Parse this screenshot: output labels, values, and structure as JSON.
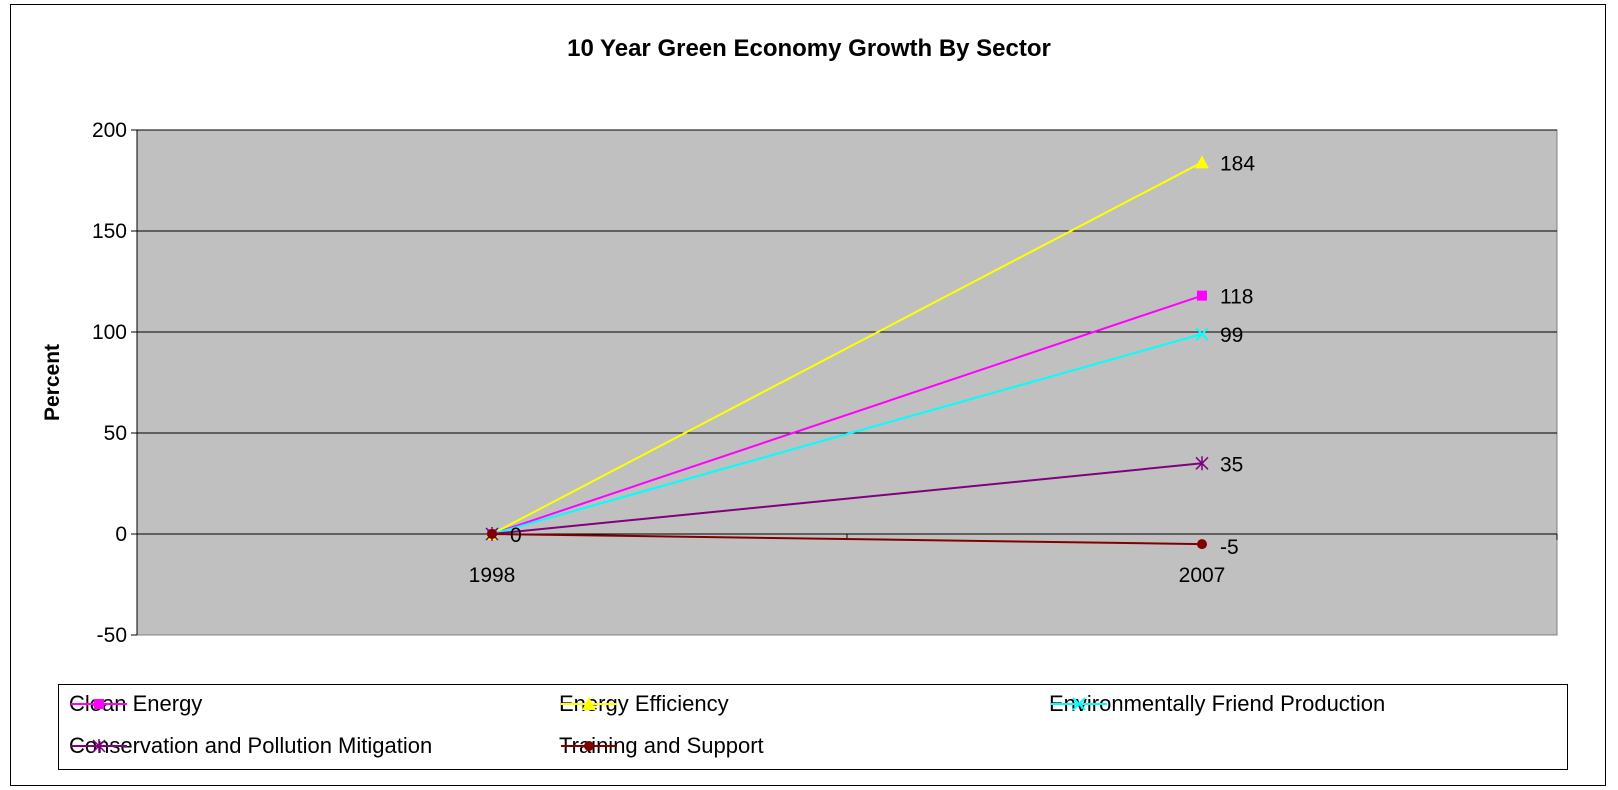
{
  "chart_data": {
    "type": "line",
    "title": "10 Year Green Economy Growth By Sector",
    "xlabel": "",
    "ylabel": "Percent",
    "categories": [
      "1998",
      "2007"
    ],
    "ylim": [
      -50,
      200
    ],
    "yticks": [
      -50,
      0,
      50,
      100,
      150,
      200
    ],
    "grid": true,
    "legend_position": "bottom",
    "plot_background": "#C0C0C0",
    "series": [
      {
        "name": "Clean Energy",
        "values": [
          0,
          118
        ],
        "color": "#FF00FF",
        "marker": "square",
        "labels": [
          "",
          "118"
        ]
      },
      {
        "name": "Energy Efficiency",
        "values": [
          0,
          184
        ],
        "color": "#FFFF00",
        "marker": "triangle",
        "labels": [
          "",
          "184"
        ]
      },
      {
        "name": "Environmentally Friend Production",
        "values": [
          0,
          99
        ],
        "color": "#00FFFF",
        "marker": "x",
        "labels": [
          "",
          "99"
        ]
      },
      {
        "name": "Conservation and Pollution Mitigation",
        "values": [
          0,
          35
        ],
        "color": "#800080",
        "marker": "asterisk",
        "labels": [
          "",
          "35"
        ]
      },
      {
        "name": "Training and Support",
        "values": [
          0,
          -5
        ],
        "color": "#800000",
        "marker": "circle",
        "labels": [
          "0",
          "-5"
        ]
      }
    ]
  }
}
